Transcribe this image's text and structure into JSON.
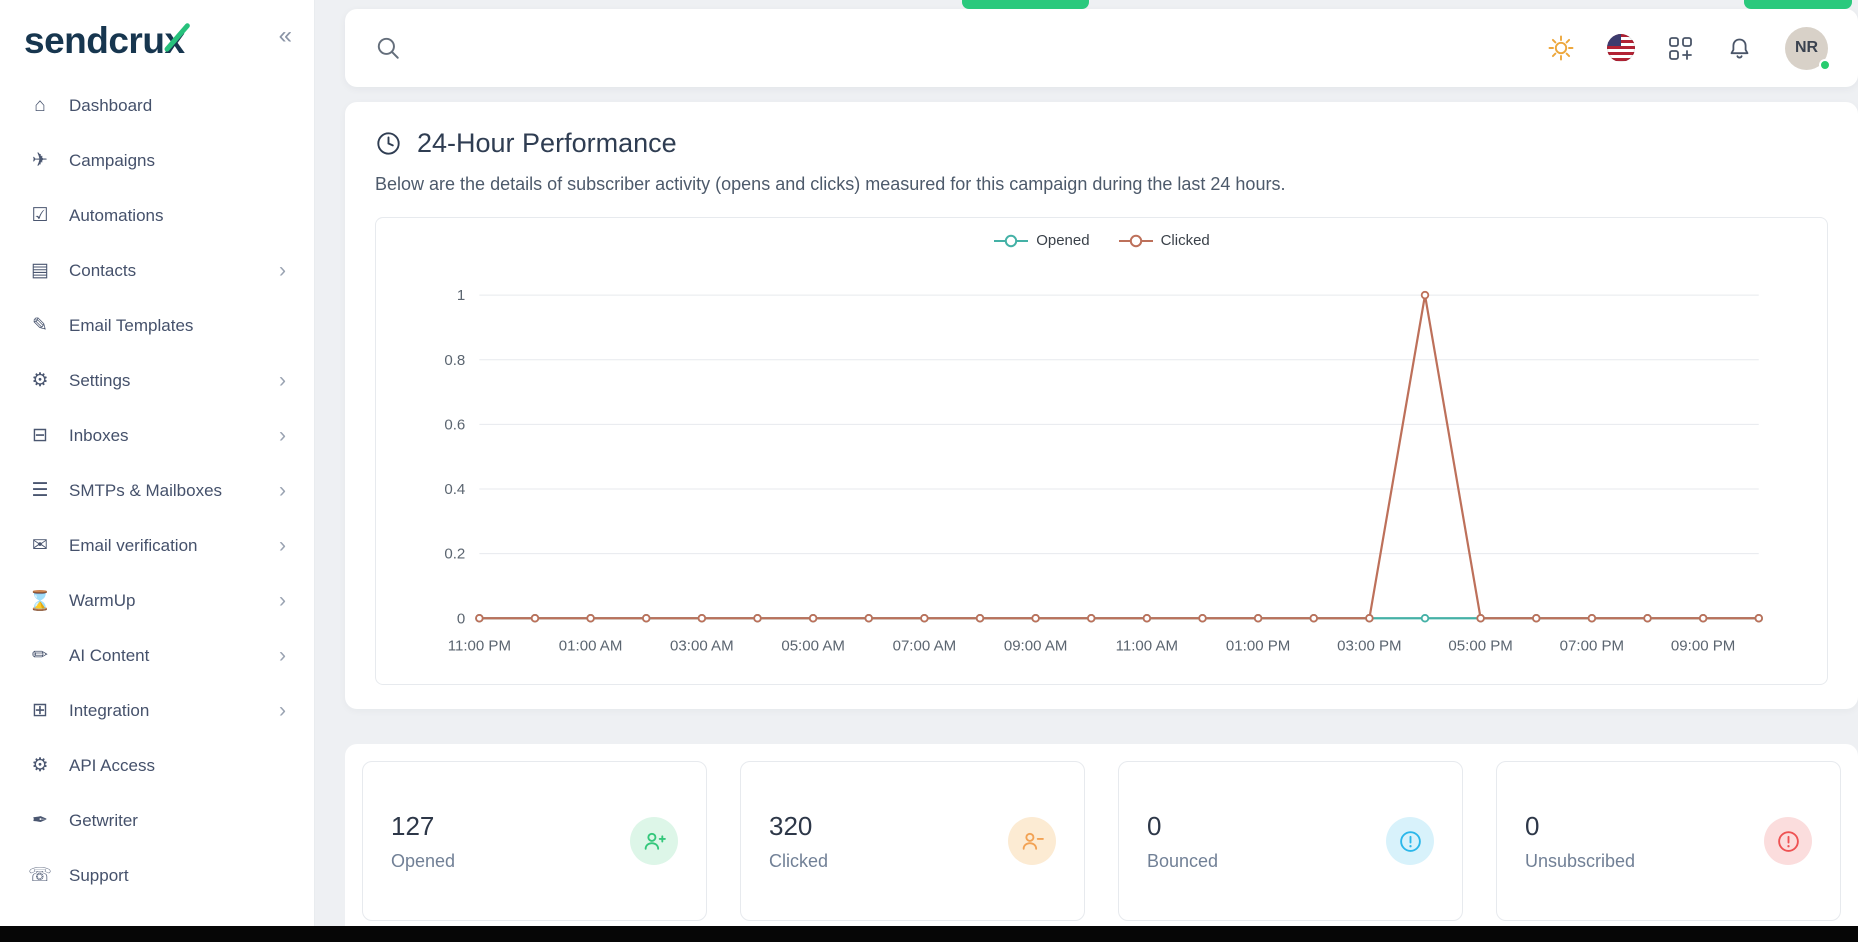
{
  "sidebar": {
    "logo_prefix": "sendcru",
    "logo_suffix": "x",
    "collapse_label": "«",
    "items": [
      {
        "label": "Dashboard",
        "icon": "home-icon",
        "chevron": false
      },
      {
        "label": "Campaigns",
        "icon": "paper-plane-icon",
        "chevron": false
      },
      {
        "label": "Automations",
        "icon": "shield-check-icon",
        "chevron": false
      },
      {
        "label": "Contacts",
        "icon": "contacts-icon",
        "chevron": true
      },
      {
        "label": "Email Templates",
        "icon": "template-edit-icon",
        "chevron": false
      },
      {
        "label": "Settings",
        "icon": "gear-icon",
        "chevron": true
      },
      {
        "label": "Inboxes",
        "icon": "chat-bubble-icon",
        "chevron": true
      },
      {
        "label": "SMTPs & Mailboxes",
        "icon": "server-icon",
        "chevron": true
      },
      {
        "label": "Email verification",
        "icon": "mail-check-icon",
        "chevron": true
      },
      {
        "label": "WarmUp",
        "icon": "hourglass-icon",
        "chevron": true
      },
      {
        "label": "AI Content",
        "icon": "ai-content-icon",
        "chevron": true
      },
      {
        "label": "Integration",
        "icon": "integration-icon",
        "chevron": true
      },
      {
        "label": "API Access",
        "icon": "api-gear-icon",
        "chevron": false
      },
      {
        "label": "Getwriter",
        "icon": "pen-icon",
        "chevron": false
      },
      {
        "label": "Support",
        "icon": "headset-icon",
        "chevron": false
      }
    ]
  },
  "topbar": {
    "avatar_initials": "NR",
    "status_color": "#27cc6e"
  },
  "performance": {
    "title": "24-Hour Performance",
    "description": "Below are the details of subscriber activity (opens and clicks) measured for this campaign during the last 24 hours."
  },
  "chart_data": {
    "type": "line",
    "x": [
      "11:00 PM",
      "12:00 AM",
      "01:00 AM",
      "02:00 AM",
      "03:00 AM",
      "04:00 AM",
      "05:00 AM",
      "06:00 AM",
      "07:00 AM",
      "08:00 AM",
      "09:00 AM",
      "10:00 AM",
      "11:00 AM",
      "12:00 PM",
      "01:00 PM",
      "02:00 PM",
      "03:00 PM",
      "04:00 PM",
      "05:00 PM",
      "06:00 PM",
      "07:00 PM",
      "08:00 PM",
      "09:00 PM",
      "10:00 PM"
    ],
    "x_tick_labels": [
      "11:00 PM",
      "01:00 AM",
      "03:00 AM",
      "05:00 AM",
      "07:00 AM",
      "09:00 AM",
      "11:00 AM",
      "01:00 PM",
      "03:00 PM",
      "05:00 PM",
      "07:00 PM",
      "09:00 PM"
    ],
    "series": [
      {
        "name": "Opened",
        "color": "#44b1a6",
        "values": [
          0,
          0,
          0,
          0,
          0,
          0,
          0,
          0,
          0,
          0,
          0,
          0,
          0,
          0,
          0,
          0,
          0,
          0,
          0,
          0,
          0,
          0,
          0,
          0
        ]
      },
      {
        "name": "Clicked",
        "color": "#bd705a",
        "values": [
          0,
          0,
          0,
          0,
          0,
          0,
          0,
          0,
          0,
          0,
          0,
          0,
          0,
          0,
          0,
          0,
          0,
          1,
          0,
          0,
          0,
          0,
          0,
          0
        ]
      }
    ],
    "ylim": [
      0,
      1
    ],
    "yticks": [
      0,
      0.2,
      0.4,
      0.6,
      0.8,
      1
    ],
    "grid": true,
    "legend_position": "top"
  },
  "stats": [
    {
      "value": "127",
      "label": "Opened",
      "icon": "user-plus-icon",
      "color": "#34c77b",
      "bg": "#ddf6e8"
    },
    {
      "value": "320",
      "label": "Clicked",
      "icon": "user-minus-icon",
      "color": "#f2a254",
      "bg": "#fcebd3"
    },
    {
      "value": "0",
      "label": "Bounced",
      "icon": "alert-circle-icon",
      "color": "#2bb7ea",
      "bg": "#d8f2fb"
    },
    {
      "value": "0",
      "label": "Unsubscribed",
      "icon": "alert-circle-icon",
      "color": "#ee5253",
      "bg": "#fbdddd"
    }
  ]
}
